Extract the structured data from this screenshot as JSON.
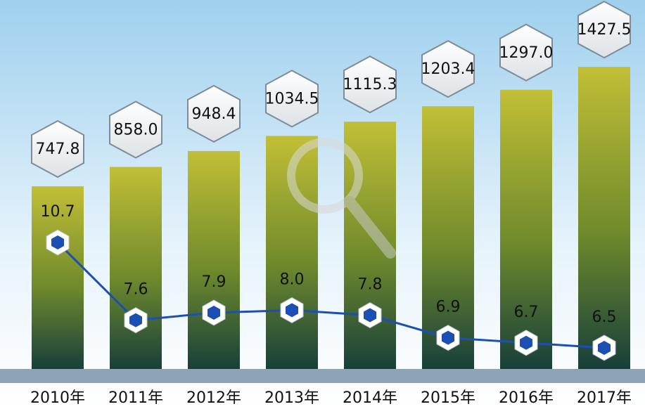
{
  "chart_data": {
    "type": "bar",
    "categories": [
      "2010年",
      "2011年",
      "2012年",
      "2013年",
      "2014年",
      "2015年",
      "2016年",
      "2017年"
    ],
    "series": [
      {
        "type": "bar",
        "color": "#c2bf36",
        "values": [
          747.8,
          858.0,
          948.4,
          1034.5,
          1115.3,
          1203.4,
          1297.0,
          1427.5
        ],
        "value_labels": [
          "747.8",
          "858.0",
          "948.4",
          "1034.5",
          "1115.3",
          "1203.4",
          "1297.0",
          "1427.5"
        ]
      },
      {
        "type": "line",
        "color": "#1b4fb4",
        "values": [
          10.7,
          7.6,
          7.9,
          8.0,
          7.8,
          6.9,
          6.7,
          6.5
        ],
        "value_labels": [
          "10.7",
          "7.6",
          "7.9",
          "8.0",
          "7.8",
          "6.9",
          "6.7",
          "6.5"
        ]
      }
    ]
  }
}
